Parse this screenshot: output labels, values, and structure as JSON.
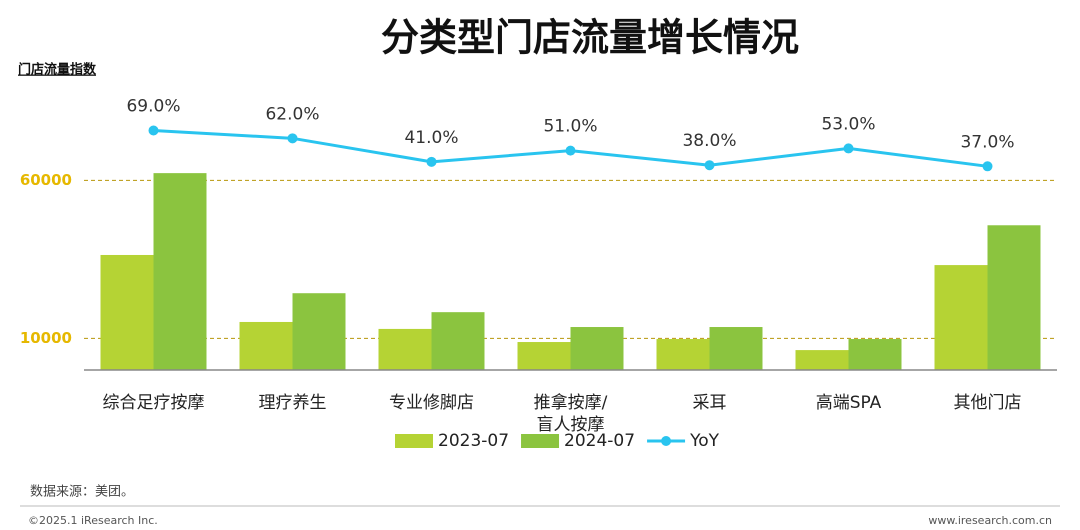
{
  "chart_data": {
    "type": "bar",
    "title": "分类型门店流量增长情况",
    "y_label": "门店流量指数",
    "categories": [
      "综合足疗按摩",
      "理疗养生",
      "专业修脚店",
      "推拿按摩/\n盲人按摩",
      "采耳",
      "高端SPA",
      "其他门店"
    ],
    "series": [
      {
        "name": "2023-07",
        "color": "#b5d334",
        "values": [
          36400,
          15200,
          13000,
          8850,
          9800,
          6300,
          33200
        ]
      },
      {
        "name": "2024-07",
        "color": "#8bc43f",
        "values": [
          62300,
          24300,
          18300,
          13600,
          13600,
          9800,
          45800
        ]
      },
      {
        "name": "YoY",
        "type": "line",
        "axis": "y2",
        "color": "#29c4ef",
        "values": [
          69,
          62,
          41,
          51,
          38,
          53,
          37
        ],
        "value_labels": [
          "69.0%",
          "62.0%",
          "41.0%",
          "51.0%",
          "38.0%",
          "53.0%",
          "37.0%"
        ]
      }
    ],
    "ylim": [
      0,
      85000
    ],
    "yticks": [
      10000,
      60000
    ],
    "y2lim": [
      -145,
      95
    ],
    "grid": true,
    "source": "数据来源：美团。"
  },
  "footer": {
    "copyright": "©2025.1 iResearch Inc.",
    "website": "www.iresearch.com.cn"
  }
}
